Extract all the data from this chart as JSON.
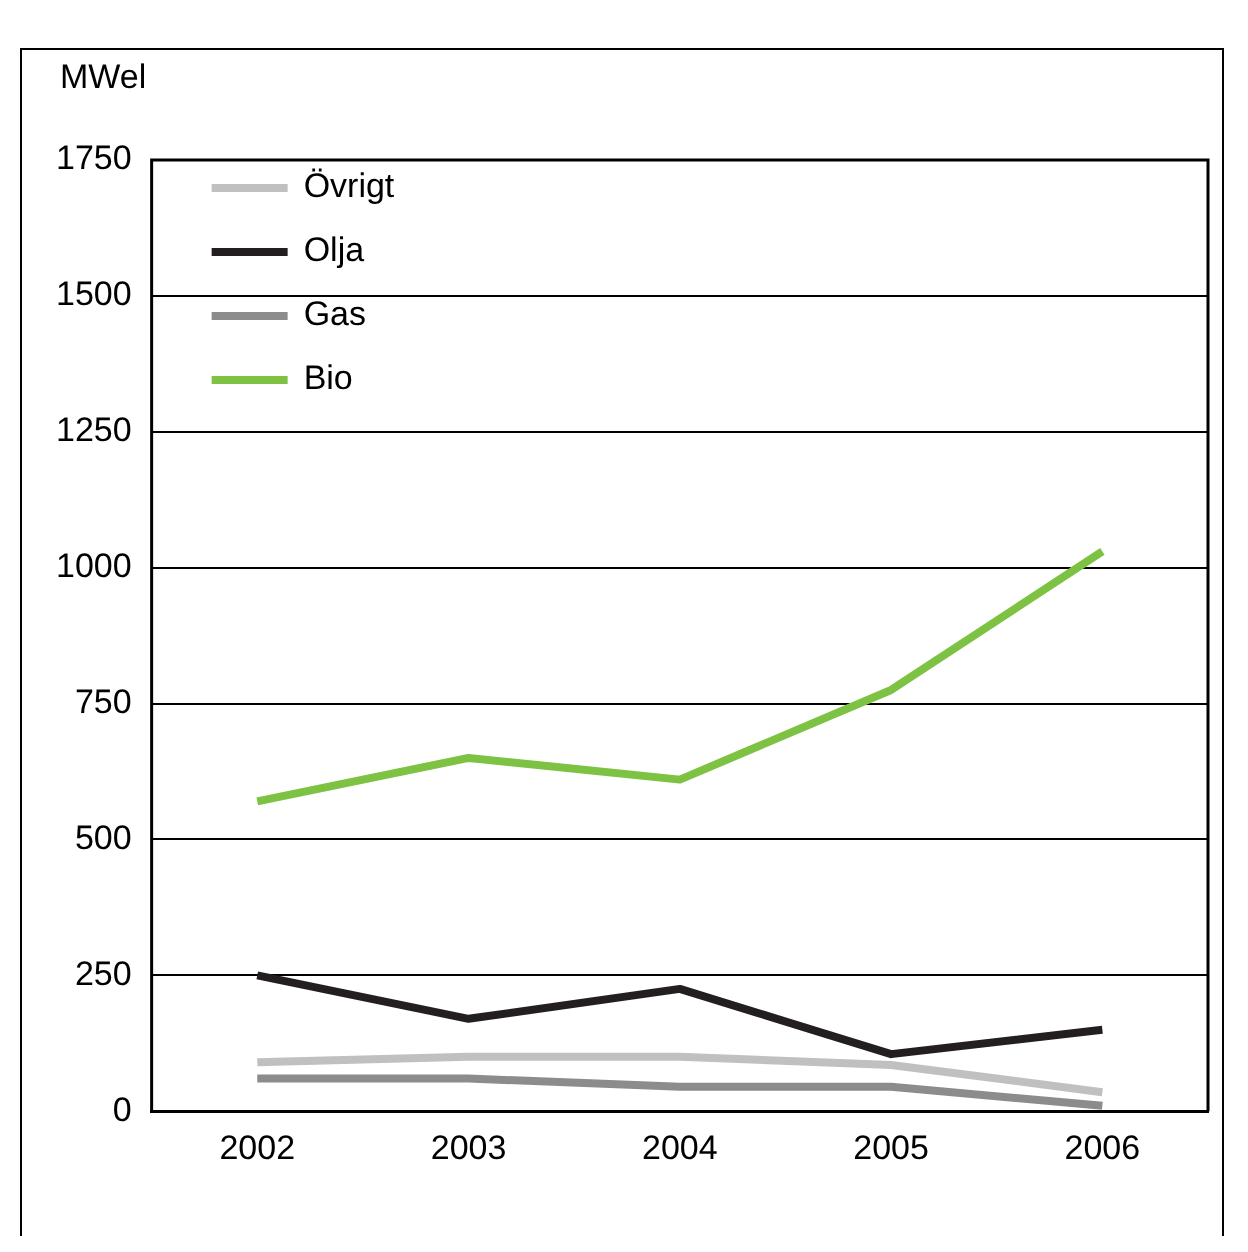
{
  "chart_data": {
    "type": "line",
    "ylabel": "MWel",
    "categories": [
      "2002",
      "2003",
      "2004",
      "2005",
      "2006"
    ],
    "series": [
      {
        "name": "Övrigt",
        "color": "#c0c0c0",
        "values": [
          90,
          100,
          100,
          85,
          35
        ]
      },
      {
        "name": "Olja",
        "color": "#231f20",
        "values": [
          250,
          170,
          225,
          105,
          150
        ]
      },
      {
        "name": "Gas",
        "color": "#8c8c8c",
        "values": [
          60,
          60,
          45,
          45,
          10
        ]
      },
      {
        "name": "Bio",
        "color": "#7dc242",
        "values": [
          570,
          650,
          610,
          775,
          1030
        ]
      }
    ],
    "ylim": [
      0,
      1750
    ],
    "yticks": [
      0,
      250,
      500,
      750,
      1000,
      1250,
      1500,
      1750
    ],
    "grid": "y",
    "legend": "top left",
    "marker": "none",
    "line_style": "solid"
  }
}
